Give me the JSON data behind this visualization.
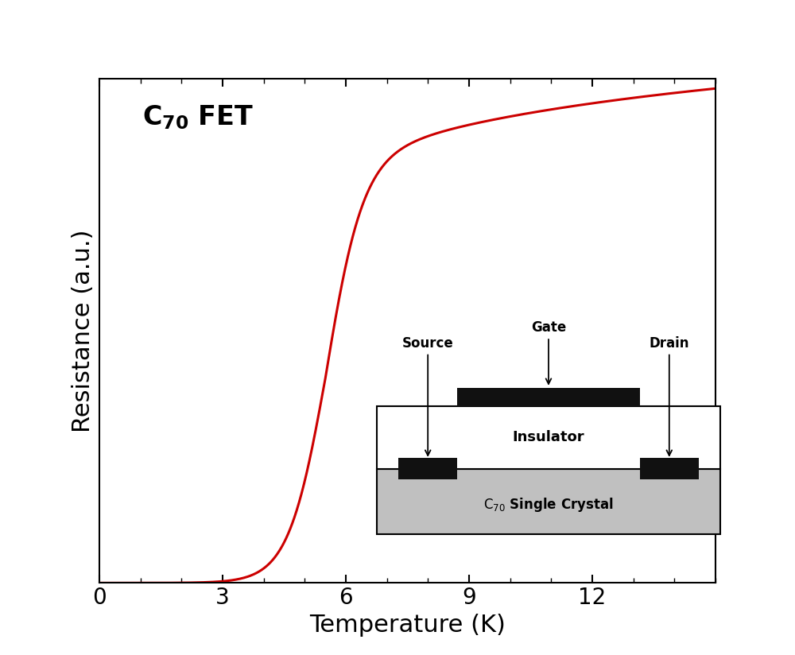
{
  "xlabel": "Temperature (K)",
  "ylabel": "Resistance (a.u.)",
  "xlim": [
    0,
    15
  ],
  "x_ticks": [
    0,
    3,
    6,
    9,
    12
  ],
  "line_color": "#cc0000",
  "line_width": 2.2,
  "background_color": "#ffffff",
  "label_fontsize": 22,
  "tick_fontsize": 20,
  "title_text_main": "FET",
  "inset_substrate_color": "#c0c0c0",
  "inset_insulator_color": "#ffffff",
  "inset_electrode_color": "#111111"
}
